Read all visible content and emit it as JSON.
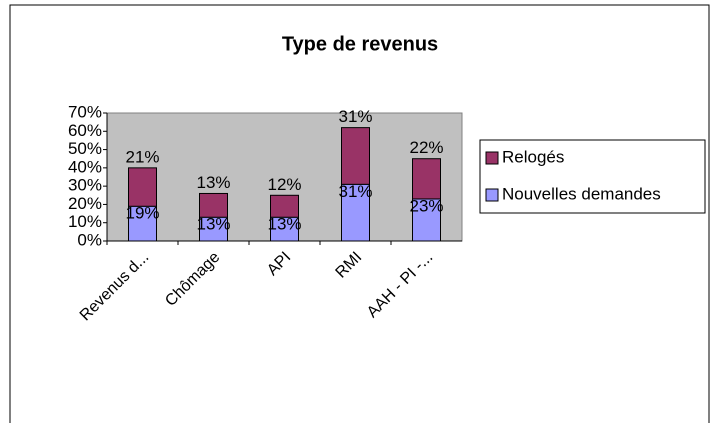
{
  "chart_data": {
    "type": "bar",
    "stacked": true,
    "title": "Type de revenus",
    "categories": [
      "Revenus d...",
      "Chômage",
      "API",
      "RMI",
      "AAH - PI -..."
    ],
    "series": [
      {
        "name": "Nouvelles demandes",
        "color": "#9999ff",
        "values": [
          19,
          13,
          13,
          31,
          23
        ],
        "value_labels": [
          "19%",
          "13%",
          "13%",
          "31%",
          "23%"
        ]
      },
      {
        "name": "Relogés",
        "color": "#993366",
        "values": [
          21,
          13,
          12,
          31,
          22
        ],
        "value_labels": [
          "21%",
          "13%",
          "12%",
          "31%",
          "22%"
        ]
      }
    ],
    "ylim": [
      0,
      70
    ],
    "yticks": [
      {
        "value": 0,
        "label": "0%"
      },
      {
        "value": 10,
        "label": "10%"
      },
      {
        "value": 20,
        "label": "20%"
      },
      {
        "value": 30,
        "label": "30%"
      },
      {
        "value": 40,
        "label": "40%"
      },
      {
        "value": 50,
        "label": "50%"
      },
      {
        "value": 60,
        "label": "60%"
      },
      {
        "value": 70,
        "label": "70%"
      }
    ],
    "grid": false,
    "legend": "right"
  }
}
